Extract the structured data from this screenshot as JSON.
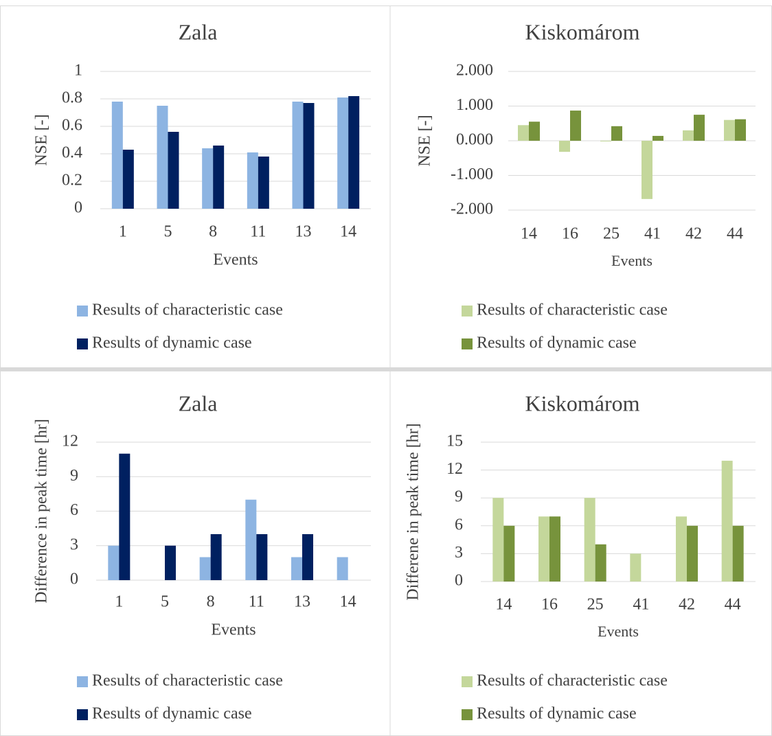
{
  "chart_data": [
    {
      "type": "bar",
      "title": "Zala",
      "x_label": "Events",
      "y_label": "NSE [-]",
      "categories": [
        "1",
        "5",
        "8",
        "11",
        "13",
        "14"
      ],
      "series": [
        {
          "name": "Results of characteristic case",
          "color": "#8db4e2",
          "values": [
            0.78,
            0.75,
            0.44,
            0.41,
            0.78,
            0.81
          ]
        },
        {
          "name": "Results of dynamic case",
          "color": "#002060",
          "values": [
            0.43,
            0.56,
            0.46,
            0.38,
            0.77,
            0.82
          ]
        }
      ],
      "ylim": [
        0,
        1
      ],
      "yticks": [
        0,
        0.2,
        0.4,
        0.6,
        0.8,
        1
      ],
      "grid": true,
      "legend": "bottom"
    },
    {
      "type": "bar",
      "title": "Kiskomárom",
      "x_label": "Events",
      "y_label": "NSE [-]",
      "categories": [
        "14",
        "16",
        "25",
        "41",
        "42",
        "44"
      ],
      "series": [
        {
          "name": "Results of characteristic case",
          "color": "#c4d79b",
          "values": [
            0.45,
            -0.32,
            -0.02,
            -1.68,
            0.3,
            0.6
          ]
        },
        {
          "name": "Results of dynamic case",
          "color": "#77933c",
          "values": [
            0.55,
            0.87,
            0.42,
            0.14,
            0.75,
            0.62
          ]
        }
      ],
      "ylim": [
        -2,
        2
      ],
      "yticks": [
        {
          "value": -2,
          "label": "-2.000"
        },
        {
          "value": -1,
          "label": "-1.000"
        },
        {
          "value": 0,
          "label": "0.000"
        },
        {
          "value": 1,
          "label": "1.000"
        },
        {
          "value": 2,
          "label": "2.000"
        }
      ],
      "grid": true,
      "legend": "bottom"
    },
    {
      "type": "bar",
      "title": "Zala",
      "x_label": "Events",
      "y_label": "Difference in peak time [hr]",
      "categories": [
        "1",
        "5",
        "8",
        "11",
        "13",
        "14"
      ],
      "series": [
        {
          "name": "Results of characteristic case",
          "color": "#8db4e2",
          "values": [
            3,
            0,
            2,
            7,
            2,
            2
          ]
        },
        {
          "name": "Results of dynamic case",
          "color": "#002060",
          "values": [
            11,
            3,
            4,
            4,
            4,
            0
          ]
        }
      ],
      "ylim": [
        0,
        12
      ],
      "yticks": [
        0,
        3,
        6,
        9,
        12
      ],
      "grid": true,
      "legend": "bottom"
    },
    {
      "type": "bar",
      "title": "Kiskomárom",
      "x_label": "Events",
      "y_label": "Differene in peak time [hr]",
      "categories": [
        "14",
        "16",
        "25",
        "41",
        "42",
        "44"
      ],
      "series": [
        {
          "name": "Results of characteristic case",
          "color": "#c4d79b",
          "values": [
            9,
            7,
            9,
            3,
            7,
            13
          ]
        },
        {
          "name": "Results of dynamic case",
          "color": "#77933c",
          "values": [
            6,
            7,
            4,
            0,
            6,
            6
          ]
        }
      ],
      "ylim": [
        0,
        15
      ],
      "yticks": [
        0,
        3,
        6,
        9,
        12,
        15
      ],
      "grid": true,
      "legend": "bottom"
    }
  ]
}
